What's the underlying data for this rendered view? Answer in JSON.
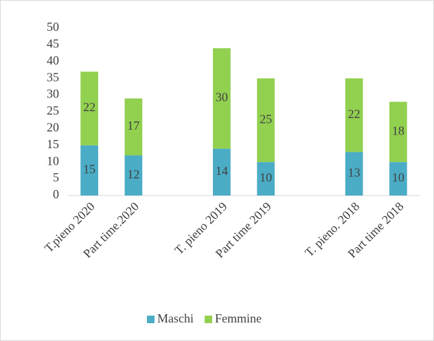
{
  "chart_data": {
    "type": "stacked_bar",
    "categories": [
      "T.pieno 2020",
      "Part time.2020",
      null,
      "T. pieno 2019",
      "Part time 2019",
      null,
      "T. pieno. 2018",
      "Part time 2018"
    ],
    "series": [
      {
        "name": "Maschi",
        "color": "#4bacc6",
        "values": [
          15,
          12,
          null,
          14,
          10,
          null,
          13,
          10
        ]
      },
      {
        "name": "Femmine",
        "color": "#92d050",
        "values": [
          22,
          17,
          null,
          30,
          25,
          null,
          22,
          18
        ]
      }
    ],
    "ylim": [
      0,
      50
    ],
    "yticks": [
      0,
      5,
      10,
      15,
      20,
      25,
      30,
      35,
      40,
      45,
      50
    ],
    "grid": false,
    "legend": "bottom"
  }
}
